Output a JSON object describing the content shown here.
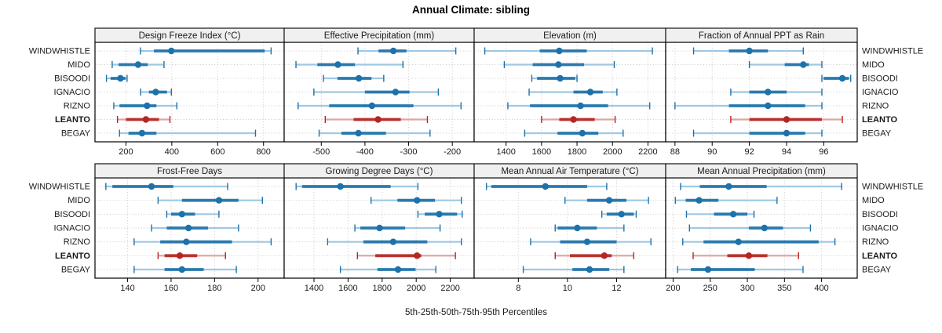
{
  "title": "Annual Climate: sibling",
  "footer": "5th-25th-50th-75th-95th Percentiles",
  "colors": {
    "blue_dark": "#1d72aa",
    "blue_light": "#9fc8e2",
    "red_dark": "#b42523",
    "red_light": "#dfa3a1",
    "grid": "#c9c9c9",
    "strip_bg": "#f0f0f0",
    "border": "#000000",
    "text": "#1a1a1a"
  },
  "sites": [
    {
      "name": "WINDWHISTLE",
      "bold": false
    },
    {
      "name": "MIDO",
      "bold": false
    },
    {
      "name": "BISOODI",
      "bold": false
    },
    {
      "name": "IGNACIO",
      "bold": false
    },
    {
      "name": "RIZNO",
      "bold": false
    },
    {
      "name": "LEANTO",
      "bold": true
    },
    {
      "name": "BEGAY",
      "bold": false
    }
  ],
  "highlight_site": "LEANTO",
  "chart_data": {
    "type": "dotplot-percentiles",
    "percentile_labels": [
      "5th",
      "25th",
      "50th",
      "75th",
      "95th"
    ],
    "site_order": [
      "WINDWHISTLE",
      "MIDO",
      "BISOODI",
      "IGNACIO",
      "RIZNO",
      "LEANTO",
      "BEGAY"
    ],
    "panels": [
      {
        "title": "Design Freeze Index (°C)",
        "row": "top",
        "col": 0,
        "xlim": [
          65,
          890
        ],
        "ticks": [
          200,
          400,
          600,
          800
        ],
        "series": [
          [
            263,
            322,
            398,
            805,
            833
          ],
          [
            140,
            168,
            253,
            295,
            366
          ],
          [
            115,
            133,
            176,
            198,
            205
          ],
          [
            264,
            300,
            330,
            379,
            398
          ],
          [
            147,
            172,
            292,
            333,
            422
          ],
          [
            163,
            200,
            287,
            344,
            392
          ],
          [
            172,
            211,
            270,
            333,
            765
          ]
        ]
      },
      {
        "title": "Effective Precipitation (mm)",
        "row": "top",
        "col": 1,
        "xlim": [
          -585,
          -150
        ],
        "ticks": [
          -500,
          -400,
          -300,
          -200
        ],
        "series": [
          [
            -416,
            -369,
            -335,
            -305,
            -192
          ],
          [
            -558,
            -509,
            -462,
            -423,
            -313
          ],
          [
            -495,
            -463,
            -414,
            -385,
            -357
          ],
          [
            -517,
            -400,
            -330,
            -298,
            -232
          ],
          [
            -553,
            -482,
            -384,
            -289,
            -180
          ],
          [
            -491,
            -426,
            -370,
            -318,
            -257
          ],
          [
            -505,
            -454,
            -415,
            -352,
            -251
          ]
        ]
      },
      {
        "title": "Elevation (m)",
        "row": "top",
        "col": 2,
        "xlim": [
          1220,
          2300
        ],
        "ticks": [
          1400,
          1600,
          1800,
          2000,
          2200
        ],
        "series": [
          [
            1280,
            1590,
            1700,
            1855,
            2225
          ],
          [
            1390,
            1550,
            1695,
            1840,
            2010
          ],
          [
            1545,
            1575,
            1705,
            1790,
            1800
          ],
          [
            1530,
            1780,
            1875,
            1945,
            2025
          ],
          [
            1410,
            1535,
            1820,
            1975,
            2210
          ],
          [
            1600,
            1700,
            1780,
            1900,
            2015
          ],
          [
            1505,
            1690,
            1830,
            1920,
            2060
          ]
        ]
      },
      {
        "title": "Fraction of Annual PPT as Rain",
        "row": "top",
        "col": 3,
        "xlim": [
          87.5,
          97.8
        ],
        "ticks": [
          88,
          90,
          92,
          94,
          96
        ],
        "series": [
          [
            89.0,
            90.9,
            92.0,
            93.0,
            94.9
          ],
          [
            92.0,
            93.9,
            94.9,
            95.2,
            95.9
          ],
          [
            95.9,
            96.0,
            97.0,
            97.35,
            97.45
          ],
          [
            91.0,
            92.0,
            93.0,
            94.0,
            95.9
          ],
          [
            88.0,
            90.9,
            93.0,
            95.0,
            95.9
          ],
          [
            91.0,
            92.0,
            94.0,
            95.9,
            97.0
          ],
          [
            89.0,
            92.0,
            94.0,
            95.0,
            95.9
          ]
        ]
      },
      {
        "title": "Frost-Free Days",
        "row": "bottom",
        "col": 0,
        "xlim": [
          125,
          212
        ],
        "ticks": [
          140,
          160,
          180,
          200
        ],
        "series": [
          [
            130,
            133,
            151,
            161,
            186
          ],
          [
            154,
            165,
            182,
            191,
            202
          ],
          [
            158,
            160,
            165,
            171,
            182
          ],
          [
            151,
            158,
            168,
            177,
            191
          ],
          [
            143,
            155,
            167,
            188,
            206
          ],
          [
            154,
            157,
            164,
            172,
            185
          ],
          [
            143,
            157,
            165,
            175,
            190
          ]
        ]
      },
      {
        "title": "Growing Degree Days (°C)",
        "row": "bottom",
        "col": 1,
        "xlim": [
          1225,
          2340
        ],
        "ticks": [
          1400,
          1600,
          1800,
          2000,
          2200
        ],
        "series": [
          [
            1295,
            1330,
            1555,
            1850,
            2010
          ],
          [
            1735,
            1890,
            2005,
            2110,
            2265
          ],
          [
            2010,
            2050,
            2135,
            2240,
            2270
          ],
          [
            1640,
            1672,
            1785,
            1935,
            2140
          ],
          [
            1480,
            1690,
            1865,
            2065,
            2265
          ],
          [
            1655,
            1760,
            2005,
            2030,
            2230
          ],
          [
            1555,
            1772,
            1893,
            1996,
            2115
          ]
        ]
      },
      {
        "title": "Mean Annual Air Temperature (°C)",
        "row": "bottom",
        "col": 2,
        "xlim": [
          6.2,
          14.0
        ],
        "ticks": [
          8,
          10,
          12
        ],
        "series": [
          [
            6.7,
            6.9,
            9.1,
            10.8,
            11.6
          ],
          [
            9.9,
            10.8,
            11.7,
            12.4,
            13.3
          ],
          [
            11.4,
            11.6,
            12.2,
            12.7,
            12.8
          ],
          [
            9.5,
            9.6,
            10.4,
            11.2,
            12.3
          ],
          [
            8.5,
            9.7,
            10.8,
            12.0,
            13.4
          ],
          [
            9.5,
            10.1,
            11.5,
            11.8,
            12.7
          ],
          [
            8.2,
            10.2,
            10.9,
            11.7,
            12.3
          ]
        ]
      },
      {
        "title": "Mean Annual Precipitation (mm)",
        "row": "bottom",
        "col": 3,
        "xlim": [
          190,
          448
        ],
        "ticks": [
          200,
          250,
          300,
          350,
          400
        ],
        "series": [
          [
            210,
            236,
            275,
            326,
            427
          ],
          [
            203,
            217,
            235,
            261,
            340
          ],
          [
            218,
            255,
            281,
            300,
            309
          ],
          [
            222,
            302,
            323,
            348,
            385
          ],
          [
            213,
            241,
            288,
            396,
            418
          ],
          [
            227,
            273,
            302,
            327,
            369
          ],
          [
            206,
            224,
            247,
            310,
            375
          ]
        ]
      }
    ]
  }
}
